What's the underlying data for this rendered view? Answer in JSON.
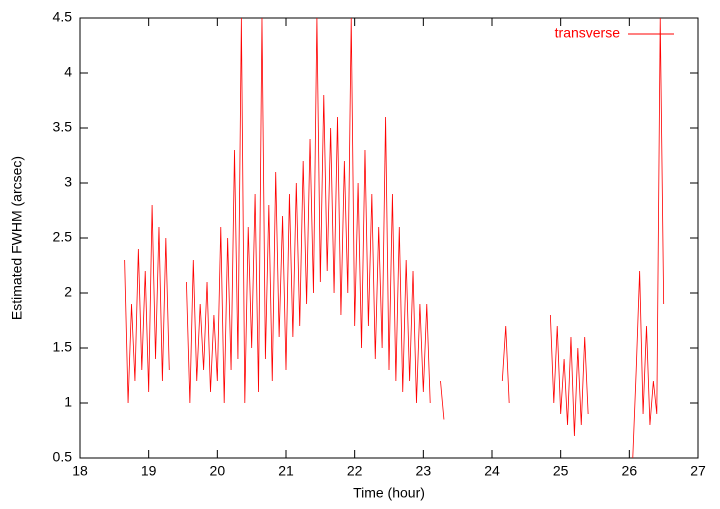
{
  "chart_data": {
    "type": "line",
    "xlabel": "Time (hour)",
    "ylabel": "Estimated FWHM (arcsec)",
    "xlim": [
      18,
      27
    ],
    "ylim": [
      0.5,
      4.5
    ],
    "xticks": [
      18,
      19,
      20,
      21,
      22,
      23,
      24,
      25,
      26,
      27
    ],
    "yticks": [
      0.5,
      1,
      1.5,
      2,
      2.5,
      3,
      3.5,
      4,
      4.5
    ],
    "legend": "top-right",
    "x": [
      18.65,
      18.7,
      18.75,
      18.8,
      18.85,
      18.9,
      18.95,
      19.0,
      19.05,
      19.1,
      19.15,
      19.2,
      19.25,
      19.3,
      19.4,
      19.55,
      19.6,
      19.65,
      19.7,
      19.75,
      19.8,
      19.85,
      19.9,
      19.95,
      20.0,
      20.05,
      20.1,
      20.15,
      20.2,
      20.25,
      20.3,
      20.35,
      20.4,
      20.45,
      20.5,
      20.55,
      20.6,
      20.65,
      20.7,
      20.75,
      20.8,
      20.85,
      20.9,
      20.95,
      21.0,
      21.05,
      21.1,
      21.15,
      21.2,
      21.25,
      21.3,
      21.35,
      21.4,
      21.45,
      21.5,
      21.55,
      21.6,
      21.65,
      21.7,
      21.75,
      21.8,
      21.85,
      21.9,
      21.95,
      22.0,
      22.05,
      22.1,
      22.15,
      22.2,
      22.25,
      22.3,
      22.35,
      22.4,
      22.45,
      22.5,
      22.55,
      22.6,
      22.65,
      22.7,
      22.75,
      22.8,
      22.85,
      22.9,
      22.95,
      23.0,
      23.05,
      23.1,
      23.2,
      23.25,
      23.3,
      23.7,
      24.15,
      24.2,
      24.25,
      24.5,
      24.85,
      24.9,
      24.95,
      25.0,
      25.05,
      25.1,
      25.15,
      25.2,
      25.25,
      25.3,
      25.35,
      25.4,
      25.7,
      26.05,
      26.1,
      26.15,
      26.2,
      26.25,
      26.3,
      26.35,
      26.4,
      26.45,
      26.5
    ],
    "series": [
      {
        "name": "transverse",
        "color": "#ff0000",
        "values": [
          2.3,
          1.0,
          1.9,
          1.2,
          2.4,
          1.3,
          2.2,
          1.1,
          2.8,
          1.4,
          2.6,
          1.2,
          2.5,
          1.3,
          null,
          2.1,
          1.0,
          2.3,
          1.2,
          1.9,
          1.3,
          2.1,
          1.1,
          1.8,
          1.2,
          2.6,
          1.0,
          2.5,
          1.3,
          3.3,
          1.4,
          4.5,
          1.0,
          2.6,
          1.5,
          2.9,
          1.1,
          4.5,
          1.4,
          2.8,
          1.2,
          3.1,
          1.6,
          2.7,
          1.3,
          2.9,
          1.6,
          3.0,
          1.7,
          3.2,
          1.9,
          3.4,
          2.0,
          4.5,
          2.1,
          3.8,
          2.2,
          3.5,
          2.0,
          3.6,
          1.8,
          3.2,
          2.0,
          4.5,
          1.7,
          3.0,
          1.5,
          3.3,
          1.7,
          2.9,
          1.4,
          2.6,
          1.5,
          3.6,
          1.3,
          2.9,
          1.2,
          2.6,
          1.1,
          2.3,
          1.2,
          2.2,
          1.0,
          1.9,
          1.1,
          1.9,
          1.0,
          null,
          1.2,
          0.85,
          null,
          1.2,
          1.7,
          1.0,
          null,
          1.8,
          1.0,
          1.7,
          0.9,
          1.4,
          0.8,
          1.6,
          0.7,
          1.5,
          0.8,
          1.6,
          0.9,
          null,
          0.5,
          1.3,
          2.2,
          0.9,
          1.7,
          0.8,
          1.2,
          0.9,
          4.5,
          1.9
        ]
      }
    ]
  }
}
